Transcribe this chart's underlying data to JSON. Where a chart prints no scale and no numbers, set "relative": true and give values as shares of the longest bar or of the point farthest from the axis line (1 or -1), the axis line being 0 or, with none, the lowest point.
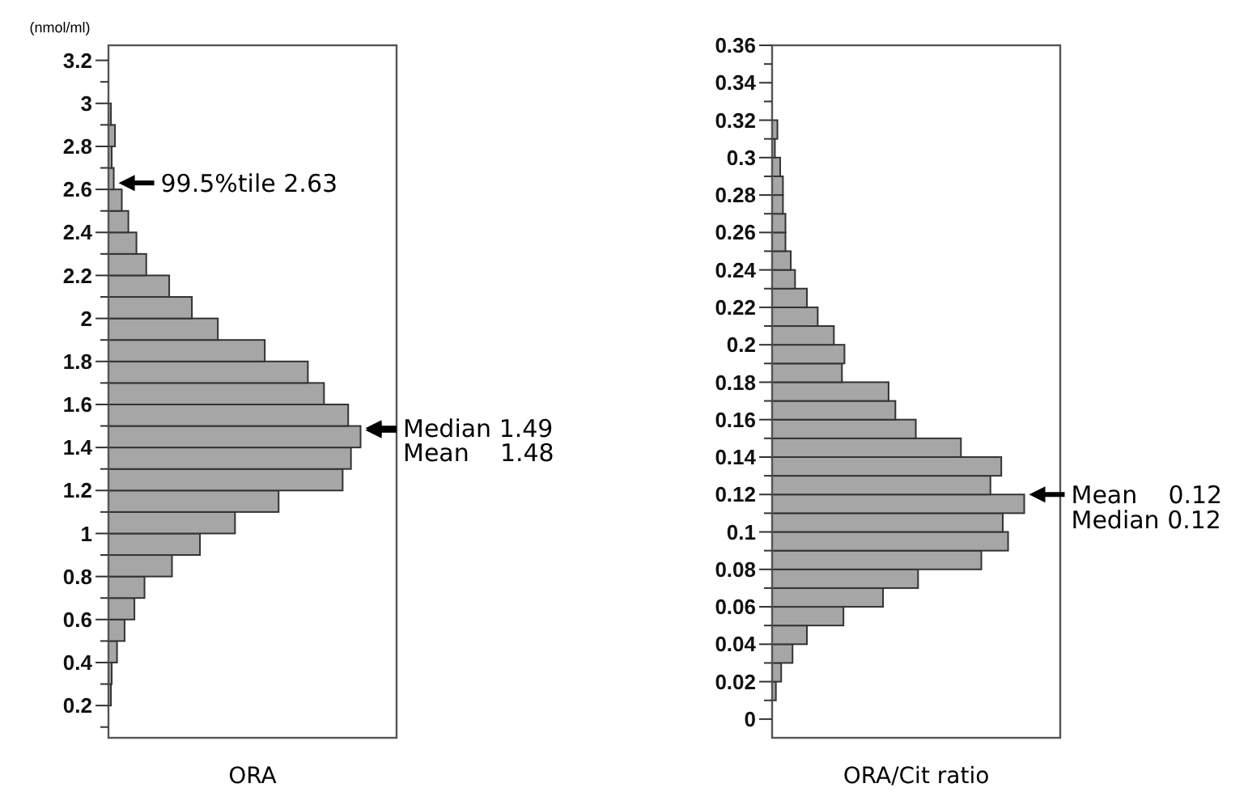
{
  "chart_data": [
    {
      "type": "bar",
      "orientation": "horizontal",
      "relative": true,
      "xlabel": "ORA",
      "ylabel": "(nmol/ml)",
      "color": "#a6a6a6",
      "x": [
        0.25,
        0.35,
        0.45,
        0.55,
        0.65,
        0.75,
        0.85,
        0.95,
        1.05,
        1.15,
        1.25,
        1.35,
        1.45,
        1.55,
        1.65,
        1.75,
        1.85,
        1.95,
        2.05,
        2.15,
        2.25,
        2.35,
        2.45,
        2.55,
        2.65,
        2.75,
        2.85,
        2.95
      ],
      "values": [
        0.01,
        0.013,
        0.034,
        0.064,
        0.103,
        0.143,
        0.252,
        0.363,
        0.502,
        0.675,
        0.929,
        0.962,
        1,
        0.951,
        0.855,
        0.791,
        0.62,
        0.434,
        0.331,
        0.241,
        0.15,
        0.111,
        0.079,
        0.053,
        0.021,
        0.013,
        0.026,
        0.01
      ],
      "ylim": [
        0.05,
        3.27
      ],
      "yticks": [
        {
          "value": 0.1,
          "label": null
        },
        0.2,
        {
          "value": 0.3,
          "label": null
        },
        0.4,
        {
          "value": 0.5,
          "label": null
        },
        0.6,
        {
          "value": 0.7,
          "label": null
        },
        0.8,
        {
          "value": 0.9,
          "label": null
        },
        1,
        {
          "value": 1.1,
          "label": null
        },
        1.2,
        {
          "value": 1.3,
          "label": null
        },
        1.4,
        {
          "value": 1.5,
          "label": null
        },
        1.6,
        {
          "value": 1.7,
          "label": null
        },
        1.8,
        {
          "value": 1.9,
          "label": null
        },
        2,
        {
          "value": 2.1,
          "label": null
        },
        2.2,
        {
          "value": 2.3,
          "label": null
        },
        2.4,
        {
          "value": 2.5,
          "label": null
        },
        2.6,
        {
          "value": 2.7,
          "label": null
        },
        2.8,
        {
          "value": 2.9,
          "label": null
        },
        3,
        {
          "value": 3.1,
          "label": null
        },
        3.2
      ],
      "ref_lines": [
        {
          "axis": "y",
          "value": 2.63,
          "label": "99.5%tile 2.63"
        },
        {
          "axis": "y",
          "value": 1.49,
          "label": "Median 1.49"
        },
        {
          "axis": "y",
          "value": 1.48,
          "label": "Mean    1.48"
        }
      ]
    },
    {
      "type": "bar",
      "orientation": "horizontal",
      "relative": true,
      "xlabel": "ORA/Cit ratio",
      "color": "#a6a6a6",
      "x": [
        0.015,
        0.025,
        0.035,
        0.045,
        0.055,
        0.065,
        0.075,
        0.085,
        0.095,
        0.105,
        0.115,
        0.125,
        0.135,
        0.145,
        0.155,
        0.165,
        0.175,
        0.185,
        0.195,
        0.205,
        0.215,
        0.225,
        0.235,
        0.245,
        0.255,
        0.265,
        0.275,
        0.285,
        0.295,
        0.305,
        0.315
      ],
      "values": [
        0.015,
        0.036,
        0.081,
        0.138,
        0.283,
        0.44,
        0.579,
        0.83,
        0.936,
        0.915,
        1,
        0.866,
        0.909,
        0.749,
        0.57,
        0.489,
        0.462,
        0.277,
        0.287,
        0.245,
        0.181,
        0.138,
        0.091,
        0.074,
        0.053,
        0.053,
        0.043,
        0.043,
        0.032,
        0.011,
        0.021
      ],
      "ylim": [
        -0.01,
        0.36
      ],
      "yticks": [
        0,
        {
          "value": 0.01,
          "label": null
        },
        0.02,
        {
          "value": 0.03,
          "label": null
        },
        0.04,
        {
          "value": 0.05,
          "label": null
        },
        0.06,
        {
          "value": 0.07,
          "label": null
        },
        0.08,
        {
          "value": 0.09,
          "label": null
        },
        0.1,
        {
          "value": 0.11,
          "label": null
        },
        0.12,
        {
          "value": 0.13,
          "label": null
        },
        0.14,
        {
          "value": 0.15,
          "label": null
        },
        0.16,
        {
          "value": 0.17,
          "label": null
        },
        0.18,
        {
          "value": 0.19,
          "label": null
        },
        0.2,
        {
          "value": 0.21,
          "label": null
        },
        0.22,
        {
          "value": 0.23,
          "label": null
        },
        0.24,
        {
          "value": 0.25,
          "label": null
        },
        0.26,
        {
          "value": 0.27,
          "label": null
        },
        0.28,
        {
          "value": 0.29,
          "label": null
        },
        0.3,
        {
          "value": 0.31,
          "label": null
        },
        0.32,
        {
          "value": 0.33,
          "label": null
        },
        0.34,
        {
          "value": 0.35,
          "label": null
        },
        0.36
      ],
      "ref_lines": [
        {
          "axis": "y",
          "value": 0.12,
          "label": "Mean    0.12\nMedian 0.12"
        }
      ]
    }
  ]
}
